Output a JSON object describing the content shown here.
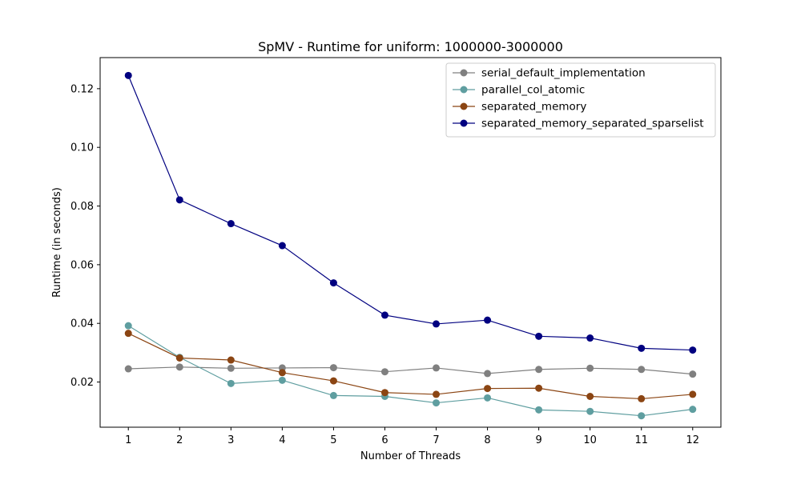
{
  "chart_data": {
    "type": "line",
    "title": "SpMV - Runtime for uniform: 1000000-3000000",
    "xlabel": "Number of Threads",
    "ylabel": "Runtime (in seconds)",
    "x": [
      1,
      2,
      3,
      4,
      5,
      6,
      7,
      8,
      9,
      10,
      11,
      12
    ],
    "xlim": [
      0.45,
      12.55
    ],
    "ylim": [
      0.0046,
      0.1306
    ],
    "yticks": [
      0.02,
      0.04,
      0.06,
      0.08,
      0.1,
      0.12
    ],
    "ytick_labels": [
      "0.02",
      "0.04",
      "0.06",
      "0.08",
      "0.10",
      "0.12"
    ],
    "xtick_labels": [
      "1",
      "2",
      "3",
      "4",
      "5",
      "6",
      "7",
      "8",
      "9",
      "10",
      "11",
      "12"
    ],
    "grid": false,
    "legend_position": "top-right",
    "series": [
      {
        "name": "serial_default_implementation",
        "color": "#808080",
        "values": [
          0.0245,
          0.0251,
          0.0247,
          0.0248,
          0.0249,
          0.0235,
          0.0248,
          0.0229,
          0.0243,
          0.0247,
          0.0243,
          0.0227
        ]
      },
      {
        "name": "parallel_col_atomic",
        "color": "#5f9ea0",
        "values": [
          0.0392,
          0.0284,
          0.0195,
          0.0206,
          0.0154,
          0.0151,
          0.0129,
          0.0146,
          0.0105,
          0.01,
          0.0085,
          0.0107
        ]
      },
      {
        "name": "separated_memory",
        "color": "#8b4513",
        "values": [
          0.0366,
          0.0282,
          0.0275,
          0.0232,
          0.0204,
          0.0164,
          0.0158,
          0.0178,
          0.0179,
          0.0151,
          0.0143,
          0.0158
        ]
      },
      {
        "name": "separated_memory_separated_sparselist",
        "color": "#000080",
        "values": [
          0.1245,
          0.0821,
          0.074,
          0.0665,
          0.0538,
          0.0428,
          0.0398,
          0.0411,
          0.0356,
          0.035,
          0.0315,
          0.0309
        ]
      }
    ]
  }
}
